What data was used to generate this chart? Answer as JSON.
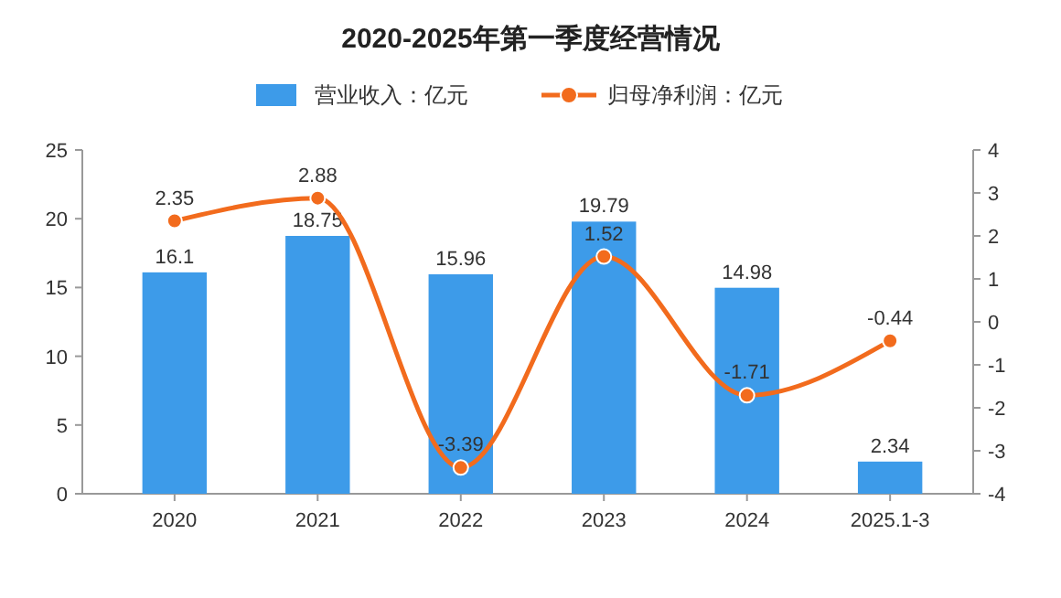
{
  "chart_data": {
    "type": "bar",
    "title": "2020-2025年第一季度经营情况",
    "categories": [
      "2020",
      "2021",
      "2022",
      "2023",
      "2024",
      "2025.1-3"
    ],
    "series": [
      {
        "name": "营业收入：亿元",
        "color": "#3d9be9",
        "values": [
          16.1,
          18.75,
          15.96,
          19.79,
          14.98,
          2.34
        ]
      },
      {
        "name": "归母净利润：亿元",
        "type": "line",
        "axis": "y2",
        "color": "#f26b1d",
        "values": [
          2.35,
          2.88,
          -3.39,
          1.52,
          -1.71,
          -0.44
        ]
      }
    ],
    "ylim": [
      0,
      25
    ],
    "yticks": [
      0,
      5,
      10,
      15,
      20,
      25
    ],
    "y2lim": [
      -4,
      4
    ],
    "y2ticks": [
      -4,
      -3,
      -2,
      -1,
      0,
      1,
      2,
      3,
      4
    ],
    "data_labels": true,
    "legend": "top",
    "marker": "circle",
    "line_style": "solid",
    "grid": false
  }
}
